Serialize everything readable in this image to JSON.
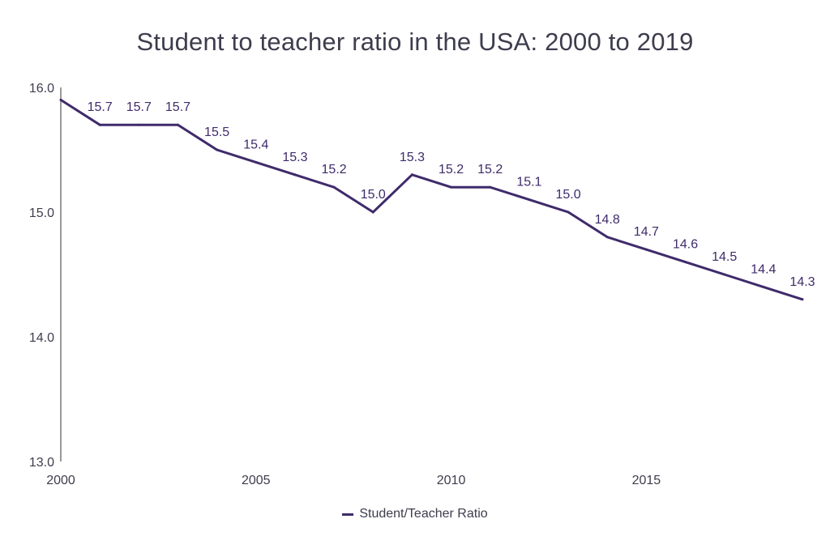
{
  "chart_data": {
    "type": "line",
    "title": "Student to teacher ratio in the USA: 2000 to 2019",
    "xlabel": "",
    "ylabel": "",
    "x": [
      2000,
      2001,
      2002,
      2003,
      2004,
      2005,
      2006,
      2007,
      2008,
      2009,
      2010,
      2011,
      2012,
      2013,
      2014,
      2015,
      2016,
      2017,
      2018,
      2019
    ],
    "xlim": [
      2000,
      2019
    ],
    "ylim": [
      13.0,
      16.0
    ],
    "x_ticks": [
      2000,
      2005,
      2010,
      2015
    ],
    "x_tick_labels": [
      "2000",
      "2005",
      "2010",
      "2015"
    ],
    "y_ticks": [
      13.0,
      14.0,
      15.0,
      16.0
    ],
    "y_tick_labels": [
      "13.0",
      "14.0",
      "15.0",
      "16.0"
    ],
    "grid": false,
    "legend_position": "bottom-center",
    "series": [
      {
        "name": "Student/Teacher Ratio",
        "color": "#3f2b6b",
        "values": [
          15.9,
          15.7,
          15.7,
          15.7,
          15.5,
          15.4,
          15.3,
          15.2,
          15.0,
          15.3,
          15.2,
          15.2,
          15.1,
          15.0,
          14.8,
          14.7,
          14.6,
          14.5,
          14.4,
          14.3
        ],
        "data_labels": [
          "",
          "15.7",
          "15.7",
          "15.7",
          "15.5",
          "15.4",
          "15.3",
          "15.2",
          "15.0",
          "15.3",
          "15.2",
          "15.2",
          "15.1",
          "15.0",
          "14.8",
          "14.7",
          "14.6",
          "14.5",
          "14.4",
          "14.3"
        ]
      }
    ]
  },
  "colors": {
    "text": "#3d3d4d",
    "line": "#3f2b6b",
    "axis": "#333333"
  }
}
